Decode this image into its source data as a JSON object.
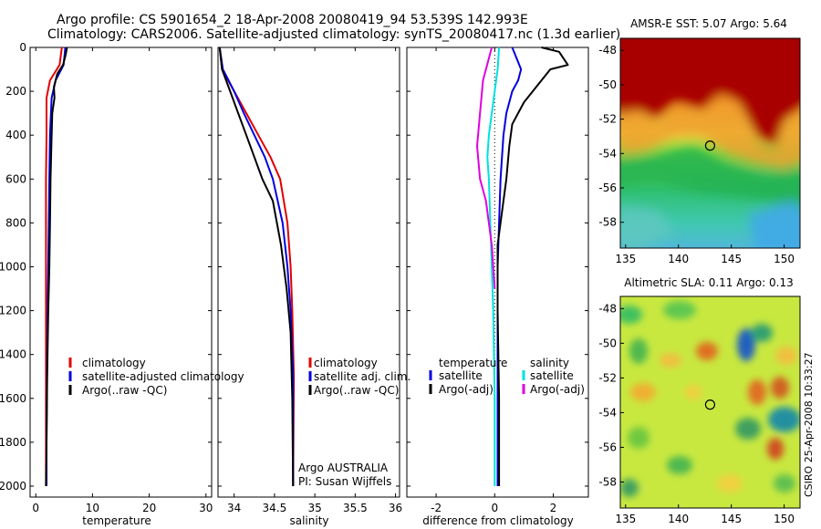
{
  "header": {
    "line1": "Argo profile: CS 5901654_2 18-Apr-2008 20080419_94 53.539S 142.993E",
    "line2": "Climatology: CARS2006. Satellite-adjusted climatology: synTS_20080417.nc (1.3d earlier)"
  },
  "colors": {
    "climatology": "#e00000",
    "satellite": "#0000e0",
    "argo": "#000000",
    "satellite_sal": "#00e0e0",
    "argo_sal_adj": "#e000e0"
  },
  "chart_data": [
    {
      "type": "line",
      "name": "temperature-panel",
      "xlabel": "temperature",
      "xlim": [
        -1,
        31
      ],
      "ylim": [
        2050,
        0
      ],
      "xticks": [
        0,
        10,
        20,
        30
      ],
      "yticks": [
        0,
        200,
        400,
        600,
        800,
        1000,
        1200,
        1400,
        1600,
        1800,
        2000
      ],
      "series": [
        {
          "name": "climatology",
          "color": "#e00000",
          "x": [
            4.6,
            4.2,
            2.5,
            1.9,
            1.9,
            1.8,
            1.8,
            1.8,
            1.8,
            1.8,
            1.8,
            1.8
          ],
          "y": [
            0,
            80,
            150,
            230,
            400,
            600,
            800,
            1000,
            1200,
            1400,
            1800,
            2000
          ]
        },
        {
          "name": "satellite-adjusted climatology",
          "color": "#0000e0",
          "x": [
            5.2,
            4.9,
            3.5,
            2.8,
            2.5,
            2.4,
            2.3,
            2.2,
            2.1,
            2.0,
            1.9,
            1.9
          ],
          "y": [
            0,
            80,
            150,
            230,
            400,
            600,
            800,
            1000,
            1200,
            1400,
            1800,
            2000
          ]
        },
        {
          "name": "Argo(..raw -QC)",
          "color": "#000000",
          "x": [
            5.5,
            5.3,
            4.8,
            3.8,
            3.2,
            3.3,
            2.9,
            2.8,
            2.6,
            2.5,
            2.4,
            2.2,
            2.0,
            1.9,
            1.8
          ],
          "y": [
            0,
            30,
            80,
            120,
            180,
            230,
            300,
            400,
            600,
            800,
            1000,
            1200,
            1500,
            1800,
            2000
          ]
        }
      ],
      "legend": {
        "location": "center-right",
        "entries": [
          "climatology",
          "satellite-adjusted climatology",
          "Argo(..raw -QC)"
        ]
      }
    },
    {
      "type": "line",
      "name": "salinity-panel",
      "xlabel": "salinity",
      "xlim": [
        33.8,
        36.05
      ],
      "ylim": [
        2050,
        0
      ],
      "xticks": [
        34,
        34.5,
        35,
        35.5,
        36
      ],
      "xticklabels": [
        "34",
        "34.5",
        "35",
        "35.5",
        "36"
      ],
      "series": [
        {
          "name": "climatology",
          "color": "#e00000",
          "x": [
            33.82,
            33.85,
            34.0,
            34.15,
            34.3,
            34.45,
            34.57,
            34.66,
            34.7,
            34.72,
            34.74,
            34.73
          ],
          "y": [
            0,
            100,
            200,
            300,
            400,
            500,
            600,
            800,
            1000,
            1200,
            1500,
            2000
          ]
        },
        {
          "name": "satellite adj. clim.",
          "color": "#0000e0",
          "x": [
            33.82,
            33.86,
            34.0,
            34.12,
            34.25,
            34.38,
            34.48,
            34.6,
            34.66,
            34.7,
            34.73,
            34.73
          ],
          "y": [
            0,
            100,
            200,
            300,
            400,
            500,
            600,
            800,
            1000,
            1200,
            1500,
            2000
          ]
        },
        {
          "name": "Argo(..raw -QC)",
          "color": "#000000",
          "x": [
            33.82,
            33.85,
            33.95,
            34.05,
            34.15,
            34.25,
            34.35,
            34.48,
            34.58,
            34.65,
            34.7,
            34.72,
            34.73
          ],
          "y": [
            0,
            100,
            200,
            300,
            400,
            500,
            600,
            700,
            900,
            1100,
            1300,
            1600,
            2000
          ]
        }
      ],
      "legend": {
        "location": "center-right",
        "entries": [
          "climatology",
          "satellite adj. clim.",
          "Argo(..raw -QC)"
        ]
      },
      "annotation": [
        "Argo AUSTRALIA",
        "PI: Susan Wijffels"
      ]
    },
    {
      "type": "line",
      "name": "difference-panel",
      "xlabel": "difference from climatology",
      "xlim": [
        -3,
        3.2
      ],
      "ylim": [
        2050,
        0
      ],
      "xticks": [
        -2,
        0,
        2
      ],
      "series": [
        {
          "name": "temperature satellite",
          "color": "#0000e0",
          "x": [
            0.6,
            0.9,
            0.8,
            0.6,
            0.4,
            0.3,
            0.2,
            0.15,
            0.1,
            0.1,
            0.1
          ],
          "y": [
            0,
            100,
            150,
            200,
            300,
            400,
            600,
            800,
            1000,
            1500,
            2000
          ]
        },
        {
          "name": "temperature Argo(-adj)",
          "color": "#000000",
          "x": [
            1.6,
            2.2,
            2.5,
            1.9,
            1.6,
            1.3,
            1.0,
            0.6,
            0.5,
            0.4,
            0.3,
            0.2,
            0.1,
            0.1,
            0.15,
            0.15
          ],
          "y": [
            0,
            20,
            80,
            100,
            150,
            200,
            250,
            350,
            450,
            600,
            700,
            800,
            900,
            1200,
            1600,
            2000
          ]
        },
        {
          "name": "salinity satellite",
          "color": "#00e0e0",
          "x": [
            0.15,
            0.1,
            0.0,
            -0.1,
            -0.2,
            -0.25,
            -0.2,
            -0.15,
            -0.1,
            -0.05,
            0.0,
            0.0
          ],
          "y": [
            0,
            100,
            200,
            300,
            400,
            500,
            600,
            800,
            1000,
            1200,
            1600,
            2000
          ]
        },
        {
          "name": "salinity Argo(-adj)",
          "color": "#e000e0",
          "x": [
            -0.1,
            -0.2,
            -0.4,
            -0.5,
            -0.6,
            -0.5,
            -0.3,
            -0.2,
            -0.1,
            -0.05,
            0.0
          ],
          "y": [
            0,
            50,
            150,
            300,
            450,
            600,
            700,
            800,
            900,
            1000,
            1100
          ]
        }
      ],
      "zero_line": 0,
      "legend": {
        "location": "center",
        "columns": [
          {
            "title": "temperature",
            "entries": [
              "satellite",
              "Argo(-adj)"
            ]
          },
          {
            "title": "salinity",
            "entries": [
              "satellite",
              "Argo(-adj)"
            ]
          }
        ]
      }
    },
    {
      "type": "heatmap",
      "name": "sst-map",
      "title": "AMSR-E SST: 5.07 Argo: 5.64",
      "xlim": [
        134.5,
        151.5
      ],
      "ylim": [
        -59.5,
        -47.3
      ],
      "xticks": [
        135,
        140,
        145,
        150
      ],
      "yticks": [
        -48,
        -50,
        -52,
        -54,
        -56,
        -58
      ],
      "marker": {
        "lon": 142.993,
        "lat": -53.539
      }
    },
    {
      "type": "heatmap",
      "name": "sla-map",
      "title": "Altimetric SLA: 0.11 Argo: 0.13",
      "xlim": [
        134.5,
        151.5
      ],
      "ylim": [
        -59.5,
        -47.3
      ],
      "xticks": [
        135,
        140,
        145,
        150
      ],
      "yticks": [
        -48,
        -50,
        -52,
        -54,
        -56,
        -58
      ],
      "marker": {
        "lon": 142.993,
        "lat": -53.539
      }
    }
  ],
  "footer": {
    "stamp": "CSIRO 25-Apr-2008 10:33:27"
  }
}
